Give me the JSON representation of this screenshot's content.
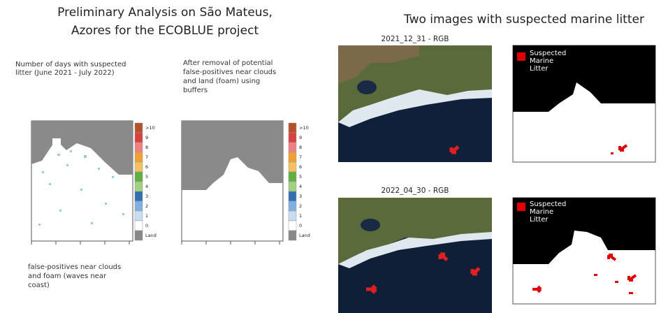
{
  "left": {
    "title_lines": [
      "Preliminary Analysis on São Mateus,",
      "Azores for the ECOBLUE project"
    ],
    "panel_1_caption": [
      "Number of days with suspected",
      "litter (June 2021 - July 2022)"
    ],
    "panel_2_caption": [
      "After removal of potential",
      "false-positives near clouds",
      "and land (foam) using",
      "buffers"
    ],
    "bottom_note": [
      "false-positives near clouds",
      "and foam (waves near",
      "coast)"
    ],
    "colorbar": {
      "labels": [
        ">10",
        "9",
        "8",
        "7",
        "6",
        "5",
        "4",
        "3",
        "2",
        "1",
        "0",
        "Land"
      ],
      "colors": [
        "#b5502a",
        "#d94040",
        "#f08080",
        "#f0a030",
        "#f5c060",
        "#60b040",
        "#a0d080",
        "#3070b0",
        "#80b0e0",
        "#c8ddf0",
        "#ffffff",
        "#888888"
      ]
    }
  },
  "right": {
    "title": "Two images with suspected marine litter",
    "images": [
      {
        "label": "2021_12_31 - RGB",
        "legend": [
          "Suspected",
          "Marine",
          "Litter"
        ]
      },
      {
        "label": "2022_04_30 - RGB",
        "legend": [
          "Suspected",
          "Marine",
          "Litter"
        ]
      }
    ]
  }
}
